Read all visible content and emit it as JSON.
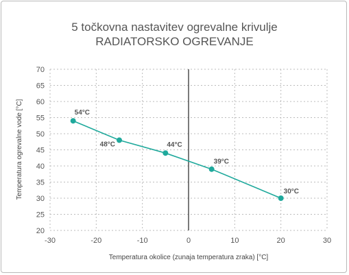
{
  "chart_data": {
    "type": "line",
    "title": "5 točkovna nastavitev ogrevalne krivulje",
    "subtitle": "RADIATORSKO OGREVANJE",
    "xlabel": "Temperatura okolice (zunaja temperatura zraka) [°C]",
    "ylabel": "Temperatura ogrevalne vode [°C]",
    "xlim": [
      -30,
      30
    ],
    "ylim": [
      20,
      70
    ],
    "x_ticks": [
      "-30",
      "-20",
      "-10",
      "0",
      "10",
      "20",
      "30"
    ],
    "y_ticks": [
      "20",
      "25",
      "30",
      "35",
      "40",
      "45",
      "50",
      "55",
      "60",
      "65",
      "70"
    ],
    "grid": true,
    "series": [
      {
        "x": [
          -25,
          -15,
          -5,
          5,
          20
        ],
        "y": [
          54,
          48,
          44,
          39,
          30
        ],
        "labels": [
          "54°C",
          "48°C",
          "44°C",
          "39°C",
          "30°C"
        ]
      }
    ],
    "colors": {
      "line": "#1fa99c",
      "marker": "#1fa99c",
      "zero_line": "#333333",
      "grid": "#bbbbbb"
    }
  }
}
